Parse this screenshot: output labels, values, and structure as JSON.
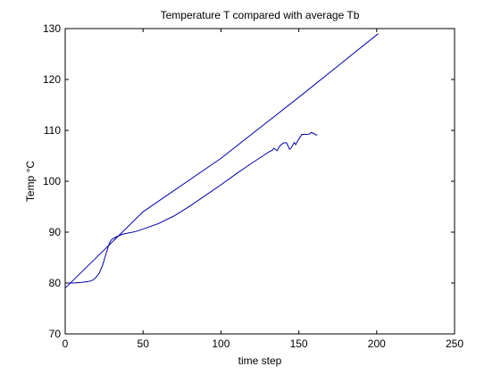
{
  "chart_data": {
    "type": "line",
    "title": "Temperature T compared with average Tb",
    "xlabel": "time step",
    "ylabel": "Temp °C",
    "xlim": [
      0,
      250
    ],
    "ylim": [
      70,
      130
    ],
    "xticks": [
      0,
      50,
      100,
      150,
      200,
      250
    ],
    "yticks": [
      70,
      80,
      90,
      100,
      110,
      120,
      130
    ],
    "grid": false,
    "line_color": "#0000aa",
    "series": [
      {
        "points": [
          [
            0,
            79
          ],
          [
            25,
            86.5
          ],
          [
            50,
            94
          ],
          [
            100,
            104.5
          ],
          [
            150,
            116.5
          ],
          [
            201,
            129
          ]
        ]
      },
      {
        "points": [
          [
            0,
            80
          ],
          [
            5,
            80
          ],
          [
            10,
            80.1
          ],
          [
            15,
            80.3
          ],
          [
            18,
            80.6
          ],
          [
            20,
            81.2
          ],
          [
            22,
            82
          ],
          [
            24,
            83.5
          ],
          [
            25,
            84.5
          ],
          [
            26,
            85.5
          ],
          [
            27,
            86.5
          ],
          [
            28,
            87.5
          ],
          [
            29,
            88.2
          ],
          [
            30,
            88.6
          ],
          [
            33,
            89.1
          ],
          [
            37,
            89.6
          ],
          [
            40,
            89.8
          ],
          [
            45,
            90.1
          ],
          [
            50,
            90.6
          ],
          [
            60,
            91.7
          ],
          [
            70,
            93.2
          ],
          [
            80,
            95.1
          ],
          [
            90,
            97.2
          ],
          [
            100,
            99.3
          ],
          [
            110,
            101.5
          ],
          [
            120,
            103.6
          ],
          [
            128,
            105.2
          ],
          [
            131,
            105.8
          ],
          [
            133,
            106.1
          ],
          [
            134,
            106.5
          ],
          [
            136,
            106
          ],
          [
            138,
            107
          ],
          [
            140,
            107.5
          ],
          [
            142,
            107.6
          ],
          [
            143,
            107
          ],
          [
            144,
            106.3
          ],
          [
            145,
            106.5
          ],
          [
            147,
            107.6
          ],
          [
            148,
            107.2
          ],
          [
            150,
            108.3
          ],
          [
            152,
            109.2
          ],
          [
            155,
            109.2
          ],
          [
            157,
            109.3
          ],
          [
            158,
            109.6
          ],
          [
            160,
            109.3
          ],
          [
            161,
            109.1
          ],
          [
            162,
            109.1
          ]
        ]
      }
    ]
  }
}
